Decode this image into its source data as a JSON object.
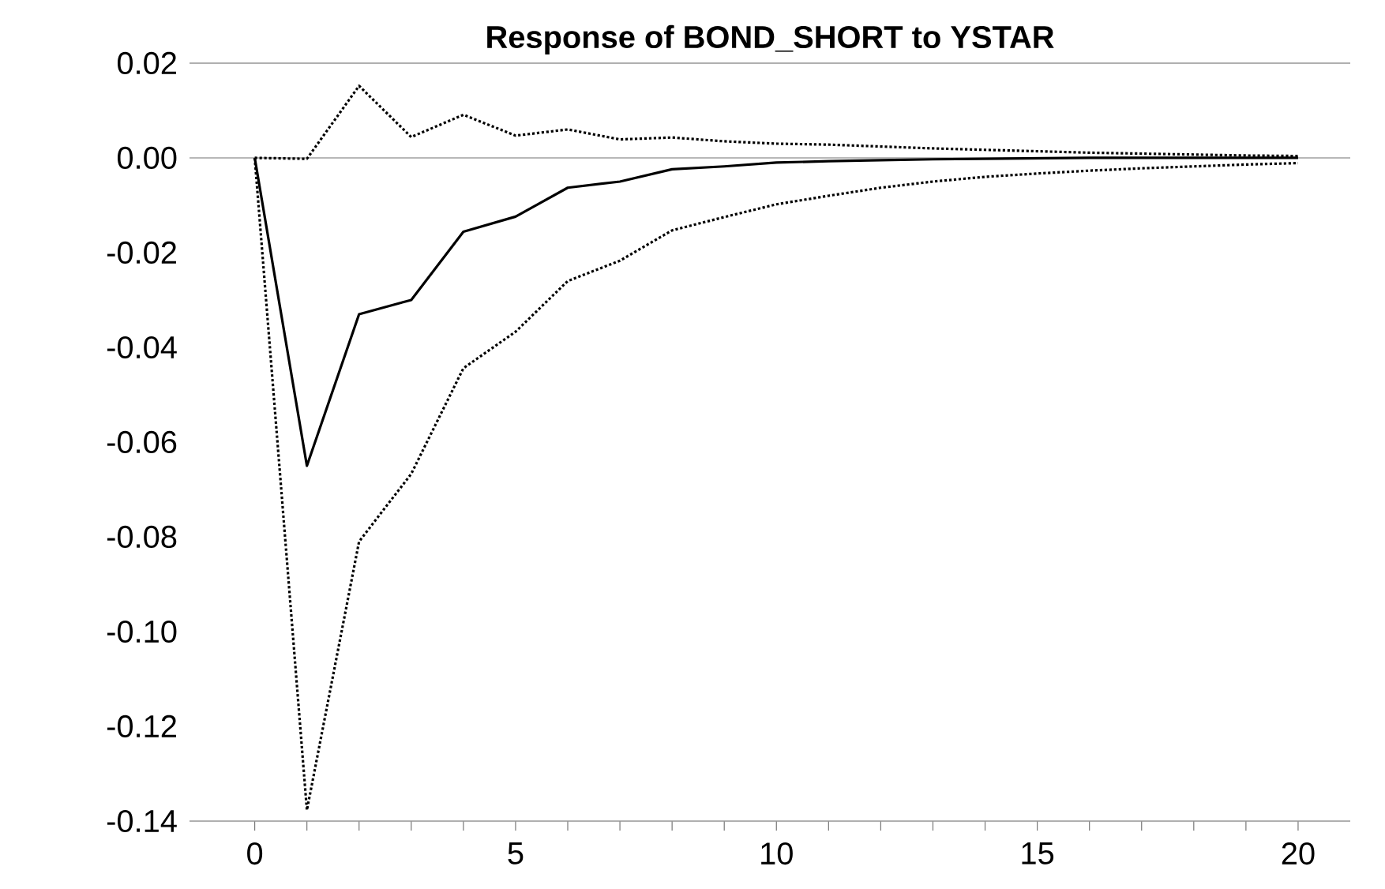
{
  "chart_data": {
    "type": "line",
    "title": "Response of BOND_SHORT to YSTAR",
    "x": [
      0,
      1,
      2,
      3,
      4,
      5,
      6,
      7,
      8,
      9,
      10,
      11,
      12,
      13,
      14,
      15,
      16,
      17,
      18,
      19,
      20
    ],
    "series": [
      {
        "color": "#000000",
        "line_style": "solid",
        "values": [
          0,
          -0.065,
          -0.033,
          -0.03,
          -0.0156,
          -0.0124,
          -0.0063,
          -0.005,
          -0.0024,
          -0.0018,
          -0.001,
          -0.0007,
          -0.0005,
          -0.0003,
          -0.0002,
          -0.0001,
          0,
          0,
          0,
          0,
          0
        ]
      },
      {
        "color": "#000000",
        "line_style": "dotted",
        "values": [
          0,
          -0.0002,
          0.0152,
          0.0044,
          0.0091,
          0.0047,
          0.006,
          0.0039,
          0.0043,
          0.0035,
          0.003,
          0.0028,
          0.0024,
          0.002,
          0.0017,
          0.0014,
          0.0011,
          0.0009,
          0.0007,
          0.0005,
          0.0004
        ]
      },
      {
        "color": "#000000",
        "line_style": "dotted",
        "values": [
          0,
          -0.1377,
          -0.081,
          -0.0667,
          -0.0444,
          -0.0367,
          -0.026,
          -0.0217,
          -0.0153,
          -0.0125,
          -0.0098,
          -0.008,
          -0.0063,
          -0.005,
          -0.004,
          -0.0033,
          -0.0027,
          -0.0022,
          -0.0018,
          -0.0014,
          -0.0011
        ]
      }
    ],
    "xlim": [
      -1.25,
      21
    ],
    "xticks": [
      0,
      {
        "value": 1,
        "label": null
      },
      {
        "value": 2,
        "label": null
      },
      {
        "value": 3,
        "label": null
      },
      {
        "value": 4,
        "label": null
      },
      5,
      {
        "value": 6,
        "label": null
      },
      {
        "value": 7,
        "label": null
      },
      {
        "value": 8,
        "label": null
      },
      {
        "value": 9,
        "label": null
      },
      10,
      {
        "value": 11,
        "label": null
      },
      {
        "value": 12,
        "label": null
      },
      {
        "value": 13,
        "label": null
      },
      {
        "value": 14,
        "label": null
      },
      15,
      {
        "value": 16,
        "label": null
      },
      {
        "value": 17,
        "label": null
      },
      {
        "value": 18,
        "label": null
      },
      {
        "value": 19,
        "label": null
      },
      20
    ],
    "ylim": [
      -0.14,
      0.02
    ],
    "yticks": [
      {
        "value": -0.14,
        "label": "-0.14"
      },
      {
        "value": -0.12,
        "label": "-0.12"
      },
      {
        "value": -0.1,
        "label": "-0.10"
      },
      {
        "value": -0.08,
        "label": "-0.08"
      },
      {
        "value": -0.06,
        "label": "-0.06"
      },
      {
        "value": -0.04,
        "label": "-0.04"
      },
      {
        "value": -0.02,
        "label": "-0.02"
      },
      {
        "value": 0,
        "label": "0.00"
      },
      {
        "value": 0.02,
        "label": "0.02"
      }
    ],
    "ref_lines": [
      {
        "axis": "y",
        "value": 0,
        "color": "#a0a0a0"
      }
    ],
    "grid": false,
    "marker": "none"
  }
}
